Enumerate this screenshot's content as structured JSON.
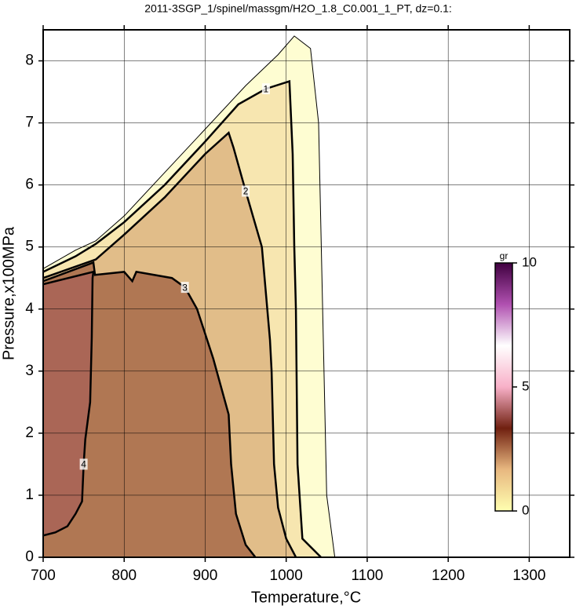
{
  "chart_data": {
    "type": "contour",
    "title": "2011-3SGP_1/spinel/massgm/H2O_1.8_C0.001_1_PT, dz=0.1:",
    "x_label": "Temperature,°C",
    "y_label": "Pressure,x100MPa",
    "xlim": [
      700,
      1350
    ],
    "ylim": [
      0,
      8.5
    ],
    "xticks": [
      700,
      800,
      900,
      1000,
      1100,
      1200,
      1300
    ],
    "yticks": [
      0,
      1,
      2,
      3,
      4,
      5,
      6,
      7,
      8
    ],
    "grid": true,
    "contours": [
      {
        "level": 0.1,
        "labeled": false,
        "x": [
          700,
          740,
          765,
          800,
          850,
          900,
          950,
          990,
          1010,
          1030,
          1040,
          1045,
          1050,
          1060
        ],
        "y": [
          4.65,
          4.95,
          5.1,
          5.5,
          6.2,
          6.9,
          7.6,
          8.1,
          8.4,
          8.2,
          7.0,
          4.0,
          1.0,
          0
        ]
      },
      {
        "level": 1,
        "labeled": true,
        "x": [
          700,
          740,
          765,
          800,
          850,
          900,
          941,
          975,
          1004,
          1008,
          1010,
          1012,
          1014,
          1020,
          1043
        ],
        "y": [
          4.6,
          4.85,
          5.05,
          5.4,
          6.0,
          6.7,
          7.3,
          7.55,
          7.67,
          6.5,
          5.0,
          4.0,
          1.5,
          0.3,
          0
        ]
      },
      {
        "level": 2,
        "labeled": true,
        "x": [
          700,
          765,
          800,
          850,
          900,
          929,
          935,
          950,
          970,
          980,
          982,
          985,
          990,
          1000,
          1012
        ],
        "y": [
          4.5,
          4.8,
          5.2,
          5.8,
          6.5,
          6.84,
          6.6,
          5.9,
          5.0,
          3.5,
          3.0,
          1.5,
          0.8,
          0.3,
          0
        ]
      },
      {
        "level": 3,
        "labeled": true,
        "x": [
          700,
          762,
          764,
          800,
          810,
          815,
          859,
          875,
          890,
          910,
          929,
          932,
          938,
          950,
          962
        ],
        "y": [
          4.45,
          4.75,
          4.55,
          4.6,
          4.45,
          4.6,
          4.5,
          4.35,
          4.0,
          3.2,
          2.3,
          1.5,
          0.7,
          0.2,
          0
        ]
      },
      {
        "level": 4,
        "labeled": true,
        "x": [
          700,
          762,
          761,
          760,
          758,
          752,
          750,
          748,
          740,
          730,
          715,
          700
        ],
        "y": [
          4.4,
          4.6,
          4.5,
          3.54,
          2.5,
          1.9,
          1.5,
          0.9,
          0.7,
          0.5,
          0.4,
          0.35
        ]
      }
    ],
    "colorbar": {
      "label": "gr",
      "lim": [
        0,
        10
      ],
      "ticks": [
        0,
        5,
        10
      ],
      "colors": [
        "#ffffb0",
        "#e8b880",
        "#702010",
        "#f8b0c8",
        "#ffffff",
        "#b050b0",
        "#400040"
      ]
    }
  }
}
